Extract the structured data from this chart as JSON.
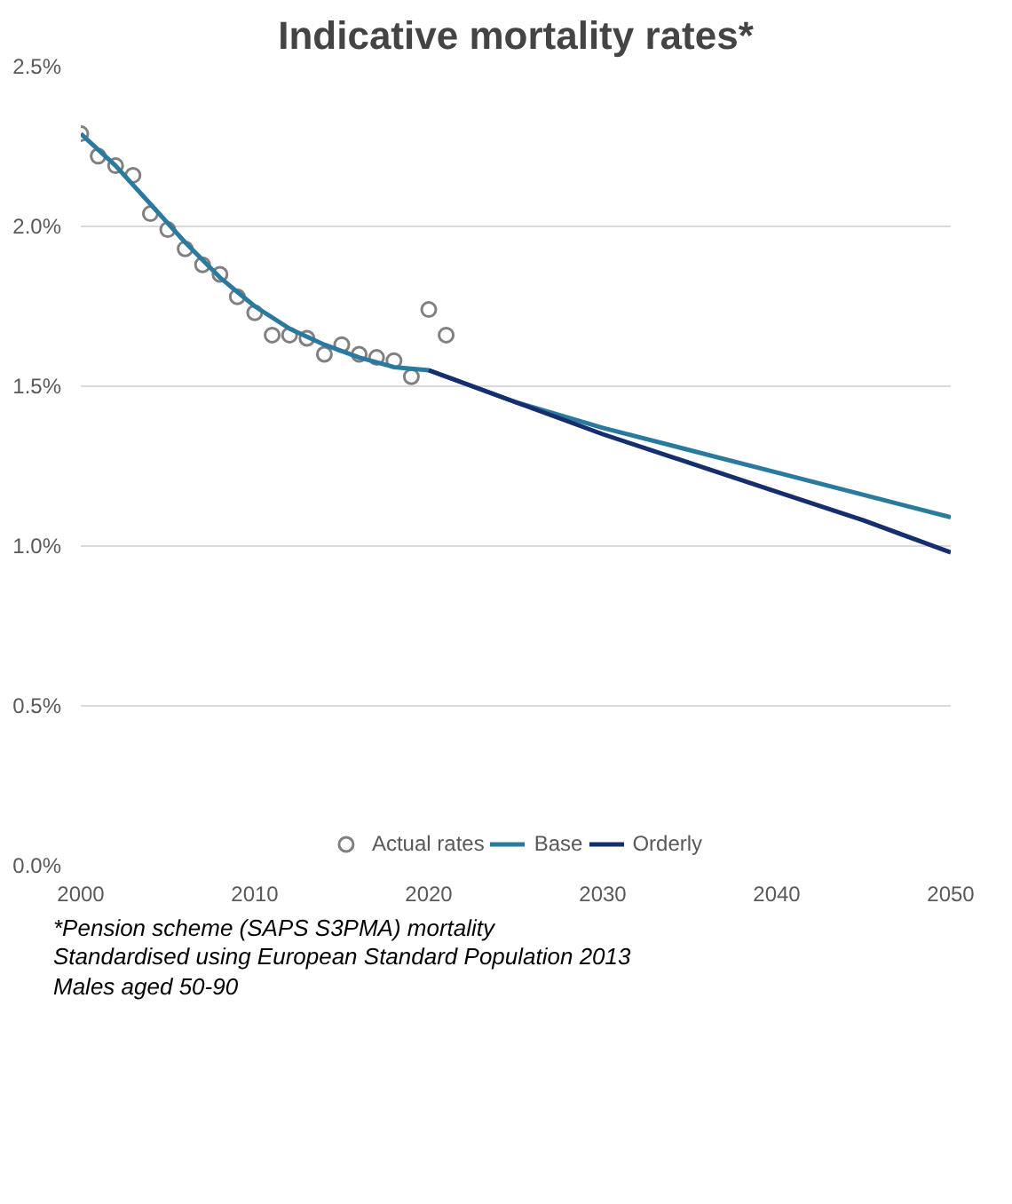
{
  "chart_data": {
    "type": "line",
    "title": "Indicative mortality rates*",
    "annotations": [
      "*Pension scheme (SAPS S3PMA) mortality",
      "Standardised using European Standard Population 2013",
      "Males aged 50-90"
    ],
    "xlim": [
      2000,
      2050
    ],
    "xticks": [
      2000,
      2010,
      2020,
      2030,
      2040,
      2050
    ],
    "ylim": [
      0,
      2.5
    ],
    "yticks": [
      {
        "value": 0,
        "label": "0.0%"
      },
      {
        "value": 0.5,
        "label": "0.5%"
      },
      {
        "value": 1,
        "label": "1.0%"
      },
      {
        "value": 1.5,
        "label": "1.5%"
      },
      {
        "value": 2,
        "label": "2.0%"
      },
      {
        "value": 2.5,
        "label": "2.5%"
      }
    ],
    "grid": "y",
    "legend": "bottom",
    "series": [
      {
        "name": "Actual rates",
        "type": "scatter",
        "marker": "circle",
        "color": "#808080",
        "x": [
          2000,
          2001,
          2002,
          2003,
          2004,
          2005,
          2006,
          2007,
          2008,
          2009,
          2010,
          2011,
          2012,
          2013,
          2014,
          2015,
          2016,
          2017,
          2018,
          2019,
          2020,
          2021
        ],
        "values": [
          2.29,
          2.22,
          2.19,
          2.16,
          2.04,
          1.99,
          1.93,
          1.88,
          1.85,
          1.78,
          1.73,
          1.66,
          1.66,
          1.65,
          1.6,
          1.63,
          1.6,
          1.59,
          1.58,
          1.53,
          1.74,
          1.66
        ]
      },
      {
        "name": "Base",
        "color": "#2a7aa0",
        "x": [
          2000,
          2002,
          2004,
          2006,
          2008,
          2010,
          2012,
          2014,
          2016,
          2018,
          2020,
          2025,
          2030,
          2035,
          2040,
          2045,
          2050
        ],
        "values": [
          2.29,
          2.19,
          2.07,
          1.95,
          1.84,
          1.75,
          1.68,
          1.63,
          1.59,
          1.56,
          1.55,
          1.45,
          1.37,
          1.3,
          1.23,
          1.16,
          1.09
        ]
      },
      {
        "name": "Orderly",
        "color": "#142e6e",
        "x": [
          2020,
          2025,
          2030,
          2035,
          2040,
          2045,
          2050
        ],
        "values": [
          1.55,
          1.45,
          1.35,
          1.26,
          1.17,
          1.08,
          0.98
        ]
      }
    ]
  }
}
